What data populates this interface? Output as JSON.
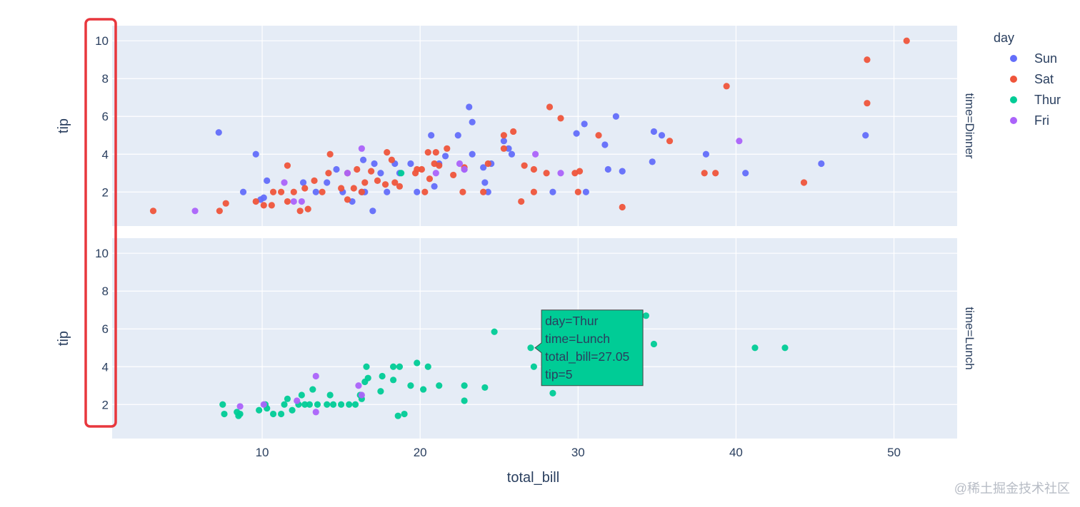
{
  "chart_data": {
    "type": "scatter",
    "xlabel": "total_bill",
    "ylabel": "tip",
    "xlim": [
      0.5,
      54
    ],
    "ylim": [
      0.2,
      10.8
    ],
    "x_ticks": [
      10,
      20,
      30,
      40,
      50
    ],
    "y_ticks": [
      2,
      4,
      6,
      8,
      10
    ],
    "legend": {
      "title": "day",
      "placement": "top-right",
      "entries": [
        "Sun",
        "Sat",
        "Thur",
        "Fri"
      ]
    },
    "facets": [
      {
        "label": "time=Dinner"
      },
      {
        "label": "time=Lunch"
      }
    ],
    "colors": {
      "Sun": "#636efa",
      "Sat": "#ef553b",
      "Thur": "#00cc96",
      "Fri": "#ab63fa"
    },
    "series": [
      {
        "name": "Sun",
        "facet": "time=Dinner",
        "points": [
          [
            7.25,
            5.15
          ],
          [
            9.6,
            4.0
          ],
          [
            8.8,
            2.0
          ],
          [
            10.3,
            2.6
          ],
          [
            9.9,
            1.6
          ],
          [
            10.1,
            1.7
          ],
          [
            12.6,
            2.5
          ],
          [
            13.4,
            2.0
          ],
          [
            14.1,
            2.5
          ],
          [
            14.7,
            3.2
          ],
          [
            15.1,
            2.0
          ],
          [
            15.7,
            1.5
          ],
          [
            16.3,
            2.0
          ],
          [
            16.4,
            3.7
          ],
          [
            16.5,
            2.0
          ],
          [
            17.0,
            1.0
          ],
          [
            17.1,
            3.5
          ],
          [
            17.5,
            3.0
          ],
          [
            17.9,
            2.0
          ],
          [
            18.4,
            3.5
          ],
          [
            18.7,
            3.0
          ],
          [
            19.4,
            3.5
          ],
          [
            19.8,
            2.0
          ],
          [
            20.7,
            5.0
          ],
          [
            20.9,
            2.3
          ],
          [
            21.2,
            3.5
          ],
          [
            21.6,
            3.9
          ],
          [
            22.4,
            5.0
          ],
          [
            22.8,
            3.2
          ],
          [
            23.3,
            4.0
          ],
          [
            23.1,
            6.5
          ],
          [
            23.3,
            5.7
          ],
          [
            24.0,
            3.3
          ],
          [
            24.1,
            2.5
          ],
          [
            24.5,
            3.5
          ],
          [
            25.3,
            4.7
          ],
          [
            25.6,
            4.3
          ],
          [
            25.8,
            4.0
          ],
          [
            29.9,
            5.1
          ],
          [
            30.4,
            5.6
          ],
          [
            31.7,
            4.5
          ],
          [
            31.9,
            3.2
          ],
          [
            32.4,
            6.0
          ],
          [
            32.8,
            3.1
          ],
          [
            34.7,
            3.6
          ],
          [
            34.8,
            5.2
          ],
          [
            35.3,
            5.0
          ],
          [
            38.1,
            4.0
          ],
          [
            40.6,
            3.0
          ],
          [
            45.4,
            3.5
          ],
          [
            48.2,
            5.0
          ],
          [
            24.3,
            2.0
          ],
          [
            30.5,
            2.0
          ],
          [
            28.4,
            2.0
          ]
        ]
      },
      {
        "name": "Sat",
        "facet": "time=Dinner",
        "points": [
          [
            3.1,
            1.0
          ],
          [
            7.3,
            1.0
          ],
          [
            7.7,
            1.4
          ],
          [
            9.6,
            1.5
          ],
          [
            10.1,
            1.3
          ],
          [
            10.6,
            1.3
          ],
          [
            10.7,
            2.0
          ],
          [
            11.2,
            2.0
          ],
          [
            11.6,
            1.5
          ],
          [
            11.6,
            3.4
          ],
          [
            12.0,
            2.0
          ],
          [
            12.4,
            1.0
          ],
          [
            12.7,
            2.2
          ],
          [
            12.9,
            1.1
          ],
          [
            13.3,
            2.6
          ],
          [
            13.8,
            2.0
          ],
          [
            14.2,
            3.0
          ],
          [
            14.3,
            4.0
          ],
          [
            15.0,
            2.2
          ],
          [
            15.4,
            1.6
          ],
          [
            15.8,
            2.2
          ],
          [
            16.0,
            3.2
          ],
          [
            16.3,
            2.0
          ],
          [
            16.5,
            2.5
          ],
          [
            16.9,
            3.1
          ],
          [
            17.3,
            2.6
          ],
          [
            17.8,
            2.4
          ],
          [
            17.9,
            4.1
          ],
          [
            18.2,
            3.7
          ],
          [
            18.4,
            2.5
          ],
          [
            18.7,
            2.3
          ],
          [
            19.7,
            3.0
          ],
          [
            20.1,
            3.2
          ],
          [
            20.3,
            2.0
          ],
          [
            20.5,
            4.1
          ],
          [
            20.9,
            3.5
          ],
          [
            21.0,
            4.1
          ],
          [
            21.7,
            4.3
          ],
          [
            22.1,
            2.9
          ],
          [
            22.7,
            2.0
          ],
          [
            22.8,
            3.3
          ],
          [
            24.0,
            2.0
          ],
          [
            25.3,
            4.3
          ],
          [
            25.3,
            5.0
          ],
          [
            25.9,
            5.2
          ],
          [
            26.4,
            1.5
          ],
          [
            26.6,
            3.4
          ],
          [
            27.2,
            2.0
          ],
          [
            27.2,
            3.2
          ],
          [
            28.2,
            6.5
          ],
          [
            28.9,
            5.9
          ],
          [
            29.8,
            3.0
          ],
          [
            30.1,
            3.1
          ],
          [
            30.0,
            2.0
          ],
          [
            31.3,
            5.0
          ],
          [
            32.8,
            1.2
          ],
          [
            35.8,
            4.7
          ],
          [
            38.0,
            3.0
          ],
          [
            38.7,
            3.0
          ],
          [
            39.4,
            7.6
          ],
          [
            44.3,
            2.5
          ],
          [
            48.3,
            6.7
          ],
          [
            48.3,
            9.0
          ],
          [
            50.8,
            10.0
          ],
          [
            28.0,
            3.0
          ],
          [
            24.3,
            3.5
          ],
          [
            20.6,
            2.7
          ],
          [
            19.8,
            3.2
          ],
          [
            21.2,
            3.4
          ],
          [
            15.4,
            3.0
          ]
        ]
      },
      {
        "name": "Thur",
        "facet": "time=Dinner",
        "points": [
          [
            18.8,
            3.0
          ]
        ]
      },
      {
        "name": "Fri",
        "facet": "time=Dinner",
        "points": [
          [
            5.75,
            1.0
          ],
          [
            11.4,
            2.5
          ],
          [
            12.5,
            1.5
          ],
          [
            12.0,
            1.5
          ],
          [
            16.3,
            4.3
          ],
          [
            15.4,
            3.0
          ],
          [
            21.0,
            3.0
          ],
          [
            22.5,
            3.5
          ],
          [
            22.8,
            3.2
          ],
          [
            27.3,
            4.0
          ],
          [
            28.9,
            3.0
          ],
          [
            40.2,
            4.7
          ]
        ]
      },
      {
        "name": "Thur",
        "facet": "time=Lunch",
        "points": [
          [
            7.5,
            2.0
          ],
          [
            7.6,
            1.5
          ],
          [
            8.4,
            1.6
          ],
          [
            8.5,
            1.4
          ],
          [
            8.6,
            1.5
          ],
          [
            9.8,
            1.7
          ],
          [
            10.2,
            2.0
          ],
          [
            10.3,
            1.8
          ],
          [
            10.7,
            1.5
          ],
          [
            11.2,
            1.5
          ],
          [
            11.4,
            2.0
          ],
          [
            11.6,
            2.3
          ],
          [
            11.9,
            1.7
          ],
          [
            12.3,
            2.0
          ],
          [
            12.5,
            2.5
          ],
          [
            12.7,
            2.0
          ],
          [
            13.0,
            2.0
          ],
          [
            13.2,
            2.8
          ],
          [
            13.5,
            2.0
          ],
          [
            14.1,
            2.0
          ],
          [
            14.3,
            2.5
          ],
          [
            14.5,
            2.0
          ],
          [
            15.0,
            2.0
          ],
          [
            15.5,
            2.0
          ],
          [
            15.9,
            2.0
          ],
          [
            16.2,
            2.5
          ],
          [
            16.3,
            2.3
          ],
          [
            16.5,
            3.2
          ],
          [
            16.6,
            4.0
          ],
          [
            16.7,
            3.4
          ],
          [
            17.5,
            2.7
          ],
          [
            17.6,
            3.5
          ],
          [
            18.3,
            3.3
          ],
          [
            18.3,
            4.0
          ],
          [
            18.7,
            4.0
          ],
          [
            18.6,
            1.4
          ],
          [
            19.0,
            1.5
          ],
          [
            19.4,
            3.0
          ],
          [
            19.8,
            4.2
          ],
          [
            20.2,
            2.8
          ],
          [
            20.5,
            4.0
          ],
          [
            21.2,
            3.0
          ],
          [
            22.8,
            3.0
          ],
          [
            22.8,
            2.2
          ],
          [
            24.1,
            2.9
          ],
          [
            24.7,
            5.85
          ],
          [
            27.0,
            5.0
          ],
          [
            27.2,
            4.0
          ],
          [
            28.4,
            2.6
          ],
          [
            34.3,
            6.7
          ],
          [
            34.8,
            5.2
          ],
          [
            41.2,
            5.0
          ],
          [
            43.1,
            5.0
          ],
          [
            32.7,
            5.0
          ],
          [
            32.7,
            4.0
          ]
        ]
      },
      {
        "name": "Fri",
        "facet": "time=Lunch",
        "points": [
          [
            8.6,
            1.9
          ],
          [
            10.1,
            2.0
          ],
          [
            12.2,
            2.2
          ],
          [
            13.4,
            1.6
          ],
          [
            13.4,
            3.5
          ],
          [
            16.1,
            3.0
          ],
          [
            16.3,
            2.5
          ]
        ]
      }
    ],
    "tooltip": {
      "facet": "time=Lunch",
      "point": [
        27.05,
        5.0
      ],
      "lines": [
        "day=Thur",
        "time=Lunch",
        "total_bill=27.05",
        "tip=5"
      ],
      "color": "#00cc96"
    },
    "highlight_box_color": "#e8373d"
  },
  "watermark": "@稀土掘金技术社区"
}
